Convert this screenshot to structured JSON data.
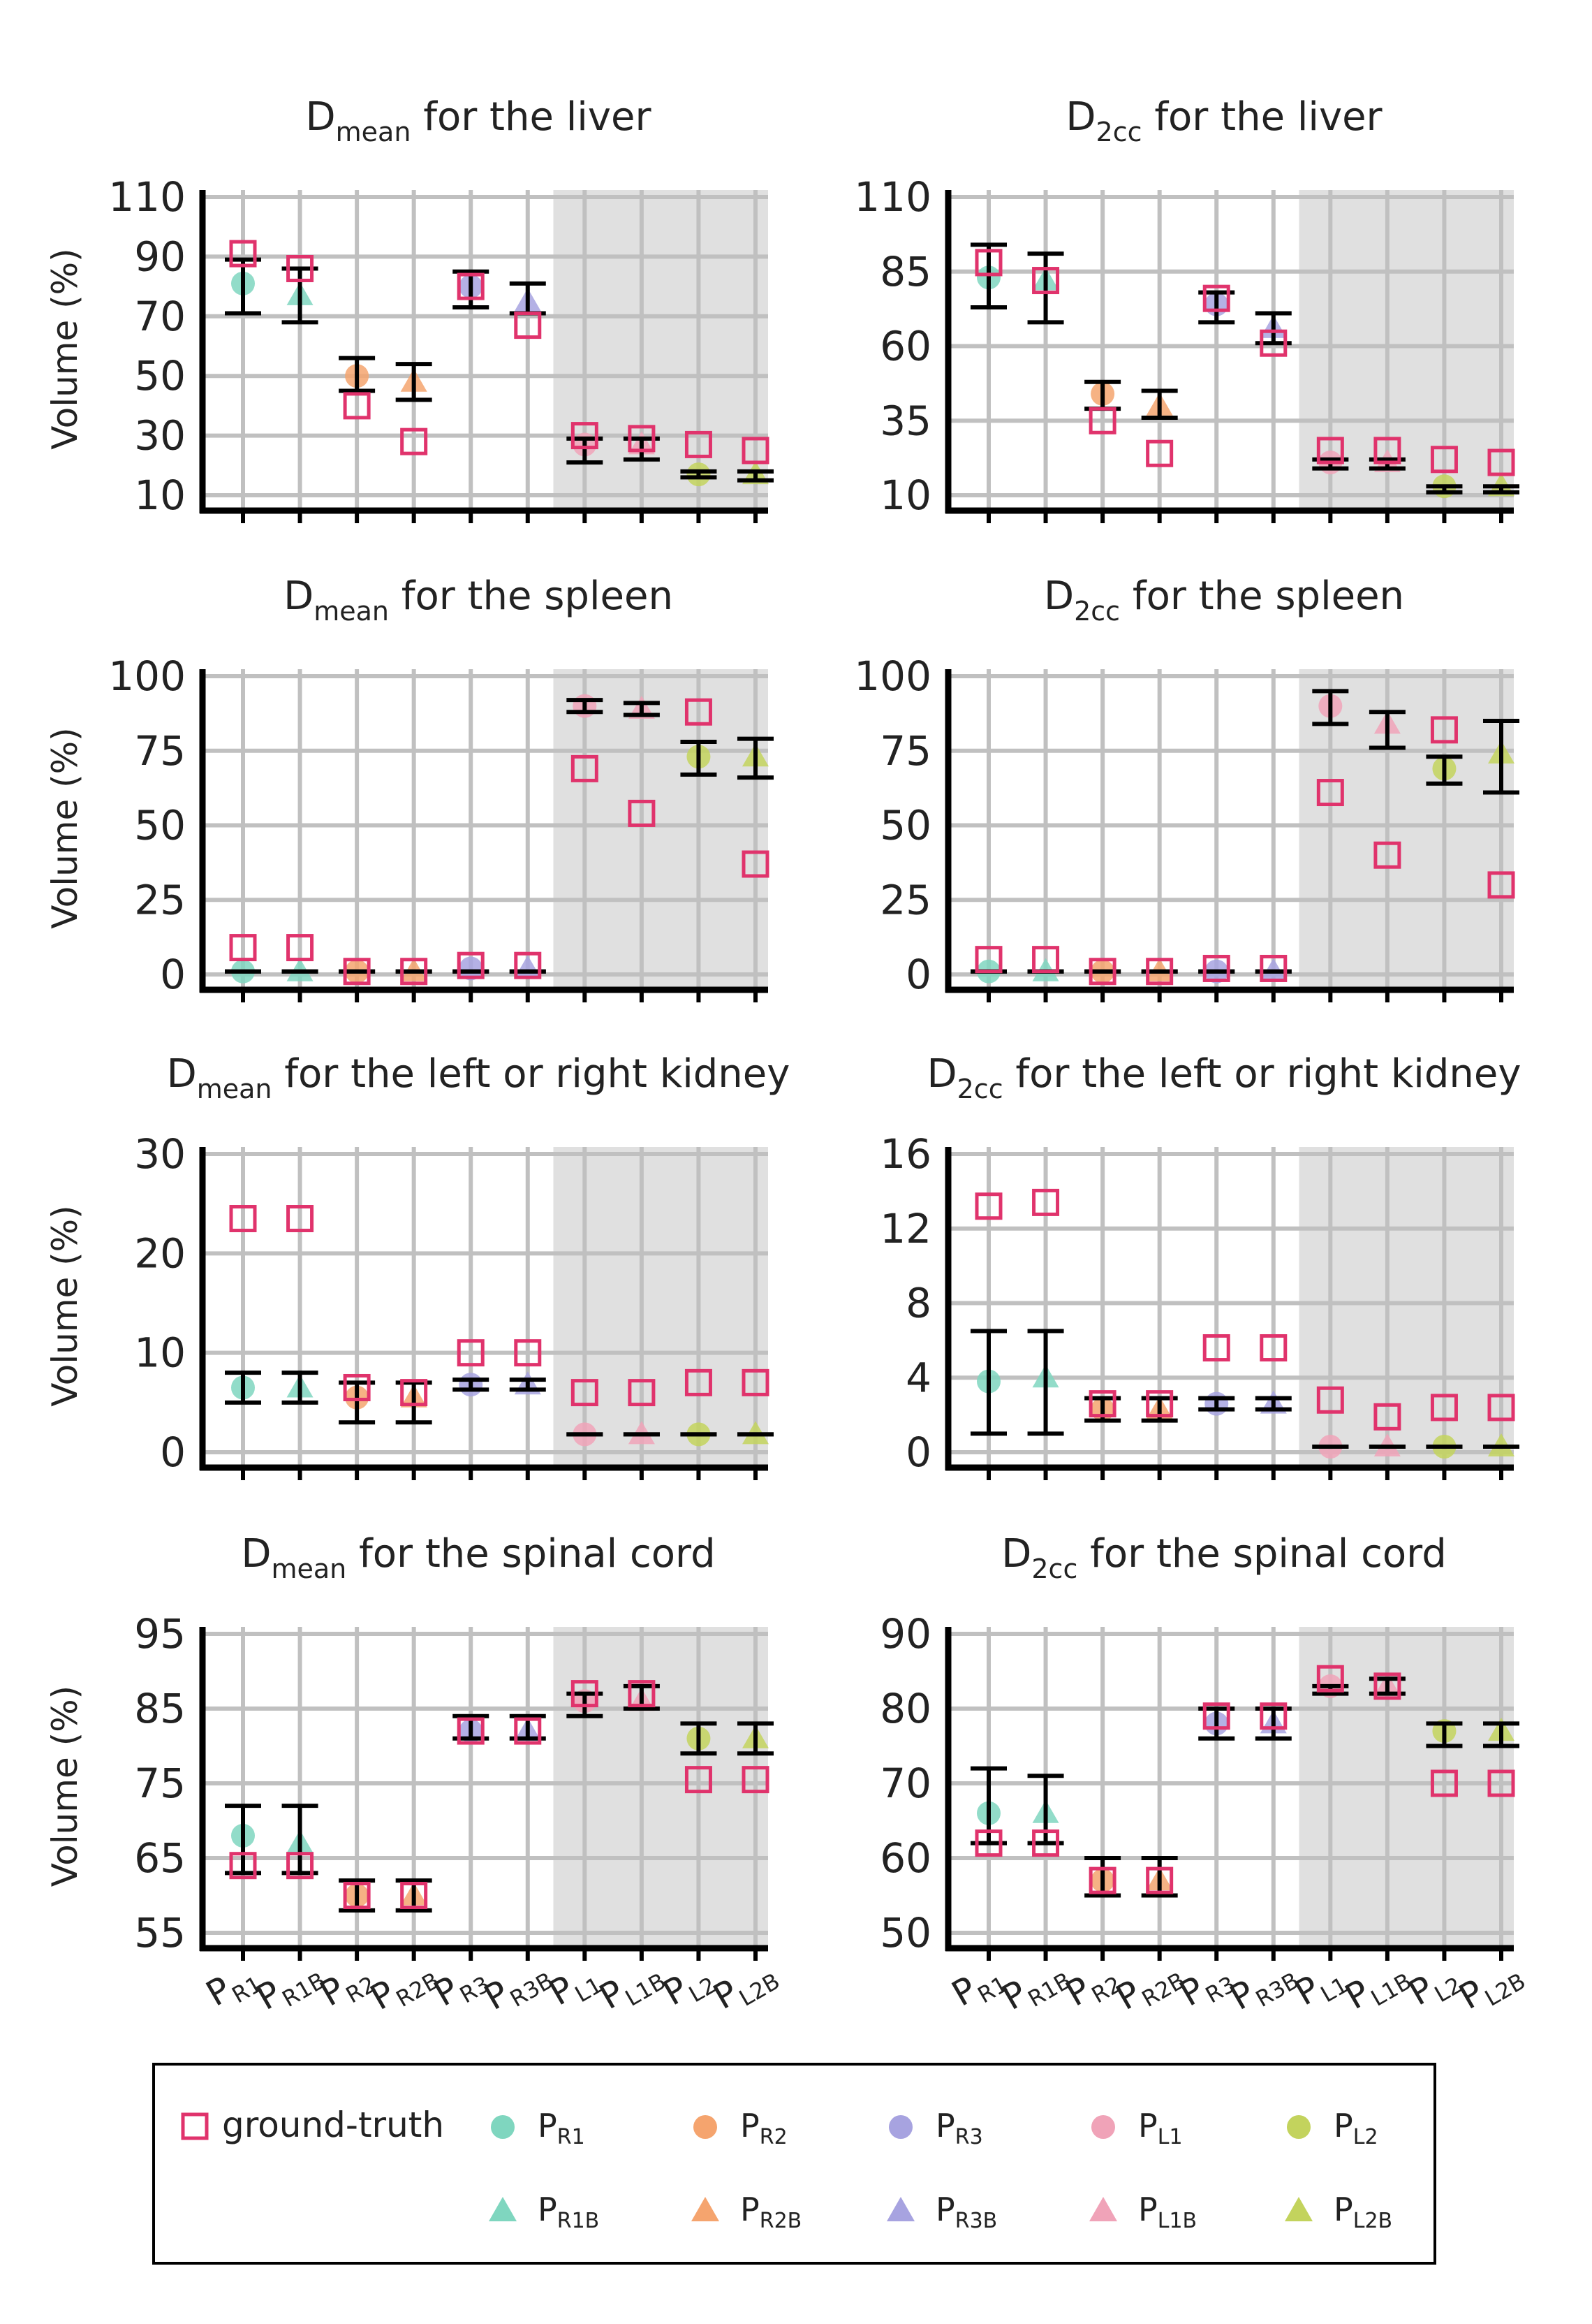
{
  "figure": {
    "y_axis_label": "Volume (%)",
    "x_labels": [
      {
        "main": "P",
        "sub": "R1"
      },
      {
        "main": "P",
        "sub": "R1B"
      },
      {
        "main": "P",
        "sub": "R2"
      },
      {
        "main": "P",
        "sub": "R2B"
      },
      {
        "main": "P",
        "sub": "R3"
      },
      {
        "main": "P",
        "sub": "R3B"
      },
      {
        "main": "P",
        "sub": "L1"
      },
      {
        "main": "P",
        "sub": "L1B"
      },
      {
        "main": "P",
        "sub": "L2"
      },
      {
        "main": "P",
        "sub": "L2B"
      }
    ],
    "colors": {
      "PR": "#7fd6bf",
      "PR2": "#f5a46e",
      "PR3": "#a7a3e0",
      "PL1": "#f0a3b8",
      "PL2": "#c3d35d",
      "ground_truth": "#e0336c",
      "shade": "#e0e0e0",
      "grid": "#c0c0c0",
      "axis": "#000000"
    }
  },
  "chart_data": [
    {
      "type": "scatter",
      "title": {
        "pre": "D",
        "sub": "mean",
        "post": " for the liver"
      },
      "ylabel": "Volume (%)",
      "ylim": [
        10,
        110
      ],
      "yticks": [
        10,
        30,
        50,
        70,
        90,
        110
      ],
      "shaded_from_category": "PL1",
      "categories": [
        "PR1",
        "PR1B",
        "PR2",
        "PR2B",
        "PR3",
        "PR3B",
        "PL1",
        "PL1B",
        "PL2",
        "PL2B"
      ],
      "ground_truth": [
        91,
        86,
        40,
        28,
        80,
        67,
        30,
        29,
        27,
        25
      ],
      "prediction_mean": [
        81,
        77,
        50,
        48,
        80,
        75,
        27,
        27,
        17,
        17
      ],
      "error_bars": [
        [
          71,
          89
        ],
        [
          68,
          86
        ],
        [
          45,
          56
        ],
        [
          42,
          54
        ],
        [
          73,
          85
        ],
        [
          71,
          81
        ],
        [
          21,
          29
        ],
        [
          22,
          29
        ],
        [
          16,
          18
        ],
        [
          15,
          18
        ]
      ]
    },
    {
      "type": "scatter",
      "title": {
        "pre": "D",
        "sub": "2cc",
        "post": " for the liver"
      },
      "ylabel": "",
      "ylim": [
        10,
        110
      ],
      "yticks": [
        10,
        35,
        60,
        85,
        110
      ],
      "shaded_from_category": "PL1",
      "categories": [
        "PR1",
        "PR1B",
        "PR2",
        "PR2B",
        "PR3",
        "PR3B",
        "PL1",
        "PL1B",
        "PL2",
        "PL2B"
      ],
      "ground_truth": [
        88,
        82,
        35,
        24,
        76,
        61,
        25,
        25,
        22,
        21
      ],
      "prediction_mean": [
        83,
        82,
        44,
        40,
        74,
        66,
        21,
        21,
        13,
        13
      ],
      "error_bars": [
        [
          73,
          94
        ],
        [
          68,
          91
        ],
        [
          39,
          48
        ],
        [
          36,
          45
        ],
        [
          68,
          78
        ],
        [
          61,
          71
        ],
        [
          19,
          22
        ],
        [
          19,
          22
        ],
        [
          11,
          13
        ],
        [
          11,
          13
        ]
      ]
    },
    {
      "type": "scatter",
      "title": {
        "pre": "D",
        "sub": "mean",
        "post": " for the spleen"
      },
      "ylabel": "Volume (%)",
      "ylim": [
        0,
        100
      ],
      "yticks": [
        0,
        25,
        50,
        75,
        100
      ],
      "shaded_from_category": "PL1",
      "categories": [
        "PR1",
        "PR1B",
        "PR2",
        "PR2B",
        "PR3",
        "PR3B",
        "PL1",
        "PL1B",
        "PL2",
        "PL2B"
      ],
      "ground_truth": [
        9,
        9,
        1,
        1,
        3,
        3,
        69,
        54,
        88,
        37
      ],
      "prediction_mean": [
        1,
        1,
        1,
        1,
        2,
        2,
        90,
        89,
        73,
        73
      ],
      "error_bars": [
        [
          1,
          1
        ],
        [
          1,
          1
        ],
        [
          1,
          1
        ],
        [
          1,
          1
        ],
        [
          1,
          1
        ],
        [
          1,
          1
        ],
        [
          88,
          92
        ],
        [
          87,
          91
        ],
        [
          67,
          78
        ],
        [
          66,
          79
        ]
      ]
    },
    {
      "type": "scatter",
      "title": {
        "pre": "D",
        "sub": "2cc",
        "post": " for the spleen"
      },
      "ylabel": "",
      "ylim": [
        0,
        100
      ],
      "yticks": [
        0,
        25,
        50,
        75,
        100
      ],
      "shaded_from_category": "PL1",
      "categories": [
        "PR1",
        "PR1B",
        "PR2",
        "PR2B",
        "PR3",
        "PR3B",
        "PL1",
        "PL1B",
        "PL2",
        "PL2B"
      ],
      "ground_truth": [
        5,
        5,
        1,
        1,
        2,
        2,
        61,
        40,
        82,
        30
      ],
      "prediction_mean": [
        1,
        1,
        1,
        1,
        1,
        1,
        90,
        84,
        69,
        74
      ],
      "error_bars": [
        [
          1,
          1
        ],
        [
          1,
          1
        ],
        [
          1,
          1
        ],
        [
          1,
          1
        ],
        [
          1,
          1
        ],
        [
          1,
          1
        ],
        [
          84,
          95
        ],
        [
          76,
          88
        ],
        [
          64,
          73
        ],
        [
          61,
          85
        ]
      ]
    },
    {
      "type": "scatter",
      "title": {
        "pre": "D",
        "sub": "mean",
        "post": " for the left or right kidney"
      },
      "ylabel": "Volume (%)",
      "ylim": [
        0,
        30
      ],
      "yticks": [
        0,
        10,
        20,
        30
      ],
      "shaded_from_category": "PL1",
      "categories": [
        "PR1",
        "PR1B",
        "PR2",
        "PR2B",
        "PR3",
        "PR3B",
        "PL1",
        "PL1B",
        "PL2",
        "PL2B"
      ],
      "ground_truth": [
        23.5,
        23.5,
        6.5,
        6.0,
        10.0,
        10.0,
        6.0,
        6.0,
        7.0,
        7.0
      ],
      "prediction_mean": [
        6.5,
        6.5,
        5.5,
        5.5,
        6.8,
        6.8,
        1.8,
        1.8,
        1.8,
        1.8
      ],
      "error_bars": [
        [
          5,
          8
        ],
        [
          5,
          8
        ],
        [
          3,
          7
        ],
        [
          3,
          7
        ],
        [
          6.3,
          7.3
        ],
        [
          6.3,
          7.3
        ],
        [
          1.8,
          1.8
        ],
        [
          1.8,
          1.8
        ],
        [
          1.8,
          1.8
        ],
        [
          1.8,
          1.8
        ]
      ]
    },
    {
      "type": "scatter",
      "title": {
        "pre": "D",
        "sub": "2cc",
        "post": " for the left or right kidney"
      },
      "ylabel": "",
      "ylim": [
        0,
        16
      ],
      "yticks": [
        0,
        4,
        8,
        12,
        16
      ],
      "shaded_from_category": "PL1",
      "categories": [
        "PR1",
        "PR1B",
        "PR2",
        "PR2B",
        "PR3",
        "PR3B",
        "PL1",
        "PL1B",
        "PL2",
        "PL2B"
      ],
      "ground_truth": [
        13.2,
        13.4,
        2.6,
        2.6,
        5.6,
        5.6,
        2.8,
        1.9,
        2.4,
        2.4
      ],
      "prediction_mean": [
        3.8,
        4.0,
        2.3,
        2.3,
        2.6,
        2.6,
        0.3,
        0.3,
        0.3,
        0.3
      ],
      "error_bars": [
        [
          1.0,
          6.5
        ],
        [
          1.0,
          6.5
        ],
        [
          1.7,
          2.9
        ],
        [
          1.7,
          2.9
        ],
        [
          2.3,
          2.9
        ],
        [
          2.3,
          2.9
        ],
        [
          0.3,
          0.3
        ],
        [
          0.3,
          0.3
        ],
        [
          0.3,
          0.3
        ],
        [
          0.3,
          0.3
        ]
      ]
    },
    {
      "type": "scatter",
      "title": {
        "pre": "D",
        "sub": "mean",
        "post": " for the spinal cord"
      },
      "ylabel": "Volume (%)",
      "ylim": [
        55,
        95
      ],
      "yticks": [
        55,
        65,
        75,
        85,
        95
      ],
      "shaded_from_category": "PL1",
      "categories": [
        "PR1",
        "PR1B",
        "PR2",
        "PR2B",
        "PR3",
        "PR3B",
        "PL1",
        "PL1B",
        "PL2",
        "PL2B"
      ],
      "ground_truth": [
        64,
        64,
        60,
        60,
        82,
        82,
        87,
        87,
        75.5,
        75.5
      ],
      "prediction_mean": [
        68,
        67,
        60,
        60,
        82,
        82,
        86,
        86,
        81,
        81
      ],
      "error_bars": [
        [
          63,
          72
        ],
        [
          63,
          72
        ],
        [
          58,
          62
        ],
        [
          58,
          62
        ],
        [
          81,
          84
        ],
        [
          81,
          84
        ],
        [
          84,
          87
        ],
        [
          85,
          88
        ],
        [
          79,
          83
        ],
        [
          79,
          83
        ]
      ]
    },
    {
      "type": "scatter",
      "title": {
        "pre": "D",
        "sub": "2cc",
        "post": " for the spinal cord"
      },
      "ylabel": "",
      "ylim": [
        50,
        90
      ],
      "yticks": [
        50,
        60,
        70,
        80,
        90
      ],
      "shaded_from_category": "PL1",
      "categories": [
        "PR1",
        "PR1B",
        "PR2",
        "PR2B",
        "PR3",
        "PR3B",
        "PL1",
        "PL1B",
        "PL2",
        "PL2B"
      ],
      "ground_truth": [
        62,
        62,
        57,
        57,
        79,
        79,
        84,
        83,
        70,
        70
      ],
      "prediction_mean": [
        66,
        66,
        57,
        57,
        78,
        78,
        83,
        83,
        77,
        77
      ],
      "error_bars": [
        [
          62,
          72
        ],
        [
          62,
          71
        ],
        [
          55,
          60
        ],
        [
          55,
          60
        ],
        [
          76,
          80
        ],
        [
          76,
          80
        ],
        [
          82,
          83
        ],
        [
          82,
          84
        ],
        [
          75,
          78
        ],
        [
          75,
          78
        ]
      ]
    }
  ],
  "legend": {
    "ground_truth_label": "ground-truth",
    "items": [
      {
        "main": "P",
        "sub": "R1",
        "shape": "circle",
        "color": "#7fd6bf"
      },
      {
        "main": "P",
        "sub": "R2",
        "shape": "circle",
        "color": "#f5a46e"
      },
      {
        "main": "P",
        "sub": "R3",
        "shape": "circle",
        "color": "#a7a3e0"
      },
      {
        "main": "P",
        "sub": "L1",
        "shape": "circle",
        "color": "#f0a3b8"
      },
      {
        "main": "P",
        "sub": "L2",
        "shape": "circle",
        "color": "#c3d35d"
      },
      {
        "main": "P",
        "sub": "R1B",
        "shape": "triangle",
        "color": "#7fd6bf"
      },
      {
        "main": "P",
        "sub": "R2B",
        "shape": "triangle",
        "color": "#f5a46e"
      },
      {
        "main": "P",
        "sub": "R3B",
        "shape": "triangle",
        "color": "#a7a3e0"
      },
      {
        "main": "P",
        "sub": "L1B",
        "shape": "triangle",
        "color": "#f0a3b8"
      },
      {
        "main": "P",
        "sub": "L2B",
        "shape": "triangle",
        "color": "#c3d35d"
      }
    ]
  }
}
